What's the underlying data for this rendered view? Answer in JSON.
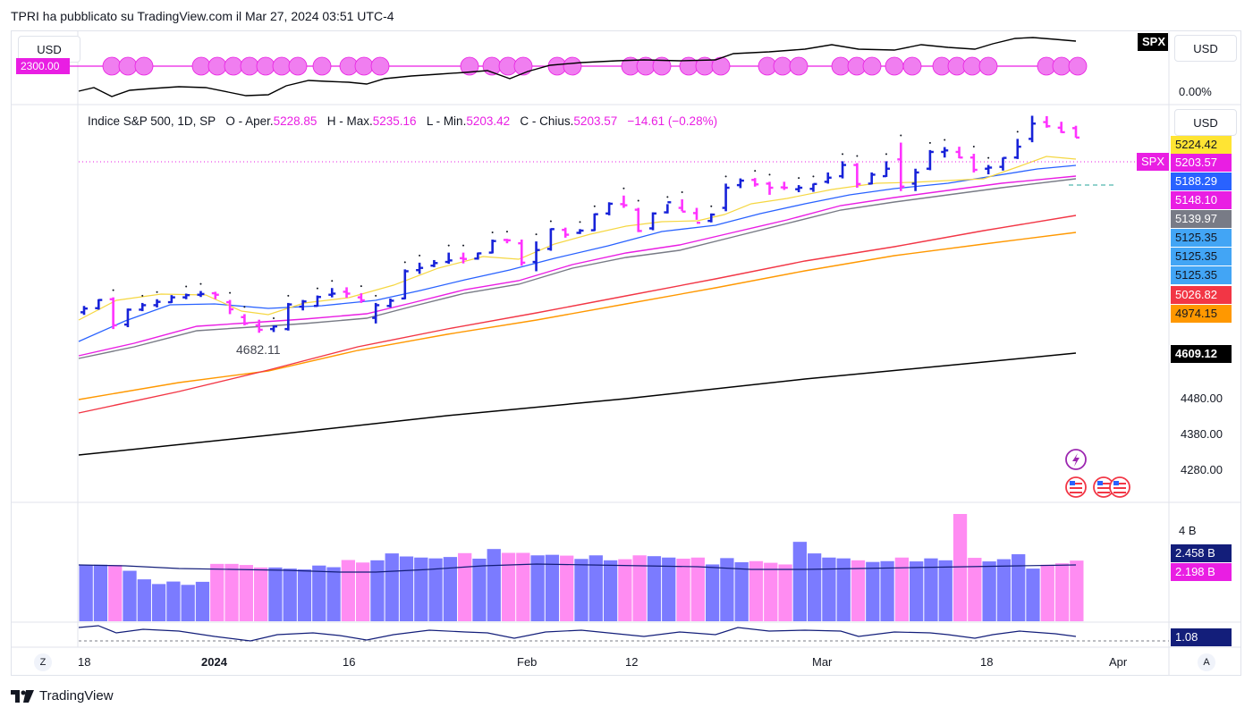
{
  "header": {
    "publisher_line": "TPRI ha pubblicato su TradingView.com il Mar 27, 2024 03:51 UTC-4"
  },
  "top_pane": {
    "usd_left": "USD",
    "usd_right": "USD",
    "ticker_badge": "SPX",
    "left_value_label": "2300.00",
    "pct_label": "0.00%"
  },
  "main_pane": {
    "usd": "USD",
    "legend": {
      "name": "Indice S&P 500, 1D, SP",
      "open_label": "O - Aper.",
      "open": "5228.85",
      "high_label": "H - Max.",
      "high": "5235.16",
      "low_label": "L - Min.",
      "low": "5203.42",
      "close_label": "C - Chius.",
      "close": "5203.57",
      "change": "−14.61 (−0.28%)"
    },
    "low_annotation": "4682.11",
    "last_ticker": "SPX",
    "price_labels": [
      {
        "text": "5224.42",
        "bg": "#ffe433",
        "fg": "#131722"
      },
      {
        "text": "5203.57",
        "bg": "#e91ee3",
        "fg": "#ffffff"
      },
      {
        "text": "5188.29",
        "bg": "#2962ff",
        "fg": "#ffffff"
      },
      {
        "text": "5148.10",
        "bg": "#e91ee3",
        "fg": "#ffffff"
      },
      {
        "text": "5139.97",
        "bg": "#787b86",
        "fg": "#ffffff"
      },
      {
        "text": "5125.35",
        "bg": "#42a5f5",
        "fg": "#131722"
      },
      {
        "text": "5125.35",
        "bg": "#42a5f5",
        "fg": "#131722"
      },
      {
        "text": "5125.35",
        "bg": "#42a5f5",
        "fg": "#131722"
      },
      {
        "text": "5026.82",
        "bg": "#f23645",
        "fg": "#ffffff"
      },
      {
        "text": "4974.15",
        "bg": "#ff9800",
        "fg": "#131722"
      },
      {
        "text": "4609.12",
        "bg": "#000000",
        "fg": "#ffffff"
      }
    ],
    "axis_ticks": [
      "4480.00",
      "4380.00",
      "4280.00"
    ]
  },
  "volume_pane": {
    "axis_tick": "4 B",
    "labels": [
      {
        "text": "2.458 B",
        "bg": "#131e7a",
        "fg": "#ffffff"
      },
      {
        "text": "2.198 B",
        "bg": "#e91ee3",
        "fg": "#ffffff"
      }
    ]
  },
  "osc_pane": {
    "label": {
      "text": "1.08",
      "bg": "#131e7a",
      "fg": "#ffffff"
    }
  },
  "time_axis": {
    "left_btn": "Z",
    "right_btn": "A",
    "labels": [
      "18",
      "2024",
      "16",
      "Feb",
      "12",
      "Mar",
      "18",
      "Apr"
    ]
  },
  "footer": {
    "brand": "TradingView"
  },
  "colors": {
    "up_bar": "#1722d9",
    "down_bar": "#ff33ff",
    "ma_yellow": "#f5d742",
    "ma_blue": "#2962ff",
    "ma_magenta": "#e91ee3",
    "ma_gray": "#787b86",
    "ma_red": "#f23645",
    "ma_orange": "#ff9800",
    "ma_black": "#000000",
    "vol_up": "#7b7bff",
    "vol_down": "#ff8cf2"
  },
  "chart_data": {
    "type": "ohlc",
    "symbol": "SPX",
    "interval": "1D",
    "x_labels": [
      "18",
      "2024",
      "16",
      "Feb",
      "12",
      "Mar",
      "18",
      "Apr"
    ],
    "y_range": [
      4230,
      5280
    ],
    "series": [
      {
        "values": [
          {
            "o": 4735,
            "h": 4752,
            "l": 4728,
            "c": 4745
          },
          {
            "o": 4746,
            "h": 4770,
            "l": 4742,
            "c": 4768
          },
          {
            "o": 4770,
            "h": 4775,
            "l": 4690,
            "c": 4700
          },
          {
            "o": 4702,
            "h": 4745,
            "l": 4695,
            "c": 4742
          },
          {
            "o": 4742,
            "h": 4760,
            "l": 4738,
            "c": 4754
          },
          {
            "o": 4754,
            "h": 4770,
            "l": 4748,
            "c": 4763
          },
          {
            "o": 4762,
            "h": 4781,
            "l": 4760,
            "c": 4775
          },
          {
            "o": 4775,
            "h": 4785,
            "l": 4770,
            "c": 4781
          },
          {
            "o": 4782,
            "h": 4792,
            "l": 4776,
            "c": 4784
          },
          {
            "o": 4786,
            "h": 4790,
            "l": 4770,
            "c": 4782
          },
          {
            "o": 4762,
            "h": 4768,
            "l": 4730,
            "c": 4743
          },
          {
            "o": 4722,
            "h": 4730,
            "l": 4700,
            "c": 4705
          },
          {
            "o": 4700,
            "h": 4715,
            "l": 4680,
            "c": 4688
          },
          {
            "o": 4690,
            "h": 4700,
            "l": 4682,
            "c": 4697
          },
          {
            "o": 4690,
            "h": 4760,
            "l": 4686,
            "c": 4756
          },
          {
            "o": 4750,
            "h": 4768,
            "l": 4740,
            "c": 4764
          },
          {
            "o": 4752,
            "h": 4780,
            "l": 4750,
            "c": 4776
          },
          {
            "o": 4782,
            "h": 4800,
            "l": 4775,
            "c": 4785
          },
          {
            "o": 4790,
            "h": 4802,
            "l": 4774,
            "c": 4785
          },
          {
            "o": 4775,
            "h": 4786,
            "l": 4760,
            "c": 4767
          },
          {
            "o": 4720,
            "h": 4760,
            "l": 4705,
            "c": 4754
          },
          {
            "o": 4752,
            "h": 4772,
            "l": 4748,
            "c": 4766
          },
          {
            "o": 4772,
            "h": 4850,
            "l": 4770,
            "c": 4845
          },
          {
            "o": 4848,
            "h": 4868,
            "l": 4838,
            "c": 4854
          },
          {
            "o": 4860,
            "h": 4875,
            "l": 4856,
            "c": 4867
          },
          {
            "o": 4870,
            "h": 4895,
            "l": 4865,
            "c": 4874
          },
          {
            "o": 4880,
            "h": 4895,
            "l": 4866,
            "c": 4878
          },
          {
            "o": 4879,
            "h": 4895,
            "l": 4876,
            "c": 4893
          },
          {
            "o": 4895,
            "h": 4930,
            "l": 4893,
            "c": 4926
          },
          {
            "o": 4929,
            "h": 4932,
            "l": 4920,
            "c": 4928
          },
          {
            "o": 4920,
            "h": 4930,
            "l": 4860,
            "c": 4868
          },
          {
            "o": 4870,
            "h": 4925,
            "l": 4845,
            "c": 4902
          },
          {
            "o": 4905,
            "h": 4960,
            "l": 4900,
            "c": 4958
          },
          {
            "o": 4956,
            "h": 4962,
            "l": 4935,
            "c": 4943
          },
          {
            "o": 4948,
            "h": 4958,
            "l": 4945,
            "c": 4954
          },
          {
            "o": 4955,
            "h": 5000,
            "l": 4953,
            "c": 4998
          },
          {
            "o": 5000,
            "h": 5030,
            "l": 4995,
            "c": 5026
          },
          {
            "o": 5025,
            "h": 5048,
            "l": 5015,
            "c": 5022
          },
          {
            "o": 5010,
            "h": 5015,
            "l": 4950,
            "c": 4953
          },
          {
            "o": 4960,
            "h": 5003,
            "l": 4955,
            "c": 5000
          },
          {
            "o": 5003,
            "h": 5025,
            "l": 5000,
            "c": 5030
          },
          {
            "o": 5015,
            "h": 5038,
            "l": 5006,
            "c": 5005
          },
          {
            "o": 5001,
            "h": 5015,
            "l": 4983,
            "c": 4975
          },
          {
            "o": 4980,
            "h": 5000,
            "l": 4976,
            "c": 4997
          },
          {
            "o": 5015,
            "h": 5080,
            "l": 5006,
            "c": 5069
          },
          {
            "o": 5076,
            "h": 5094,
            "l": 5068,
            "c": 5088
          },
          {
            "o": 5090,
            "h": 5095,
            "l": 5072,
            "c": 5078
          },
          {
            "o": 5080,
            "h": 5085,
            "l": 5050,
            "c": 5069
          },
          {
            "o": 5070,
            "h": 5085,
            "l": 5063,
            "c": 5069
          },
          {
            "o": 5065,
            "h": 5076,
            "l": 5057,
            "c": 5069
          },
          {
            "o": 5066,
            "h": 5080,
            "l": 5058,
            "c": 5079
          },
          {
            "o": 5085,
            "h": 5110,
            "l": 5080,
            "c": 5096
          },
          {
            "o": 5100,
            "h": 5140,
            "l": 5094,
            "c": 5130
          },
          {
            "o": 5130,
            "h": 5135,
            "l": 5069,
            "c": 5079
          },
          {
            "o": 5080,
            "h": 5110,
            "l": 5078,
            "c": 5104
          },
          {
            "o": 5100,
            "h": 5140,
            "l": 5098,
            "c": 5120
          },
          {
            "o": 5145,
            "h": 5190,
            "l": 5060,
            "c": 5072
          },
          {
            "o": 5080,
            "h": 5120,
            "l": 5060,
            "c": 5110
          },
          {
            "o": 5120,
            "h": 5170,
            "l": 5116,
            "c": 5165
          },
          {
            "o": 5165,
            "h": 5178,
            "l": 5150,
            "c": 5169
          },
          {
            "o": 5165,
            "h": 5179,
            "l": 5148,
            "c": 5150
          },
          {
            "o": 5150,
            "h": 5160,
            "l": 5110,
            "c": 5117
          },
          {
            "o": 5120,
            "h": 5130,
            "l": 5105,
            "c": 5123
          },
          {
            "o": 5125,
            "h": 5150,
            "l": 5115,
            "c": 5149
          },
          {
            "o": 5150,
            "h": 5200,
            "l": 5146,
            "c": 5179
          },
          {
            "o": 5200,
            "h": 5262,
            "l": 5191,
            "c": 5241
          },
          {
            "o": 5245,
            "h": 5261,
            "l": 5230,
            "c": 5234
          },
          {
            "o": 5230,
            "h": 5246,
            "l": 5216,
            "c": 5218
          },
          {
            "o": 5228.85,
            "h": 5235.16,
            "l": 5203.42,
            "c": 5203.57
          }
        ]
      }
    ],
    "volume": [
      2.04,
      2.05,
      2.04,
      1.83,
      1.52,
      1.35,
      1.44,
      1.32,
      1.43,
      2.08,
      2.08,
      2.04,
      1.95,
      1.95,
      1.91,
      1.88,
      2.02,
      1.96,
      2.22,
      2.13,
      2.21,
      2.46,
      2.35,
      2.31,
      2.28,
      2.33,
      2.47,
      2.27,
      2.62,
      2.48,
      2.48,
      2.39,
      2.41,
      2.38,
      2.26,
      2.39,
      2.21,
      2.25,
      2.39,
      2.36,
      2.31,
      2.27,
      2.31,
      2.06,
      2.29,
      2.14,
      2.18,
      2.12,
      2.06,
      2.88,
      2.46,
      2.31,
      2.28,
      2.21,
      2.15,
      2.18,
      2.31,
      2.17,
      2.28,
      2.21,
      3.89,
      2.3,
      2.17,
      2.25,
      2.43,
      1.91,
      2.05,
      2.1,
      2.2
    ]
  }
}
